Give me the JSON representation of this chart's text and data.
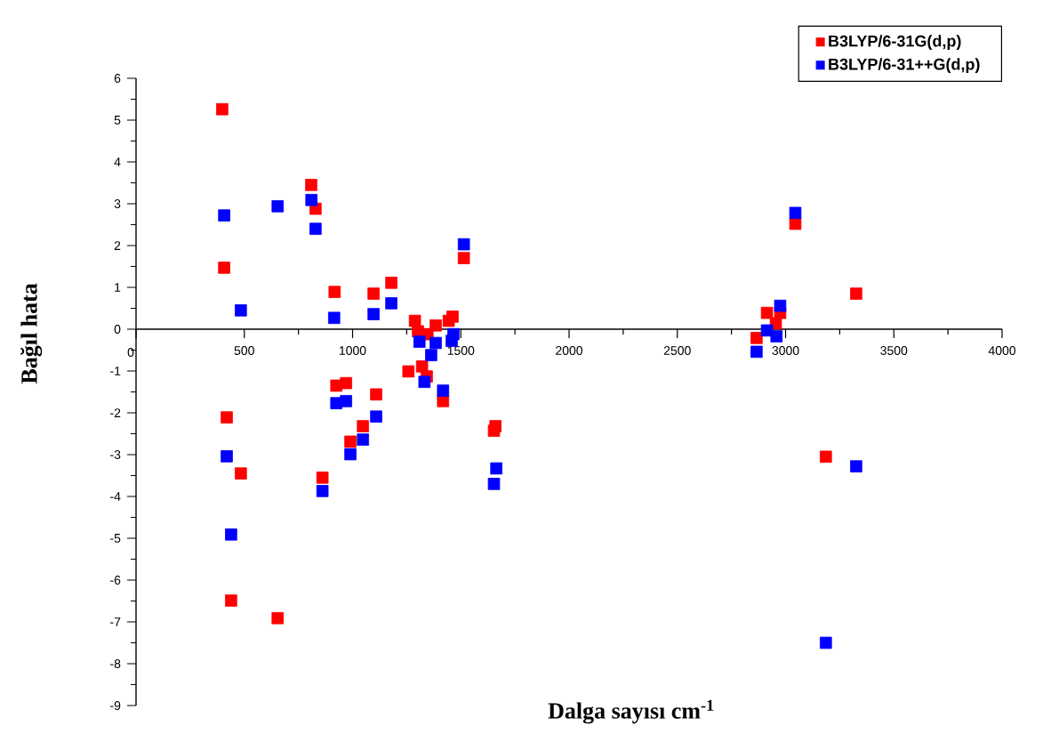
{
  "chart_data": {
    "type": "scatter",
    "xlabel": "Dalga sayısı cm$^{-1}$",
    "ylabel": "Bağıl hata",
    "xlim": [
      0,
      4000
    ],
    "ylim": [
      -9,
      6
    ],
    "xticks": [
      0,
      500,
      1000,
      1500,
      2000,
      2500,
      3000,
      3500,
      4000
    ],
    "yticks": [
      -9,
      -8,
      -7,
      -6,
      -5,
      -4,
      -3,
      -2,
      -1,
      0,
      1,
      2,
      3,
      4,
      5,
      6
    ],
    "marker": "square",
    "legend": "top right",
    "series": [
      {
        "name": "B3LYP/6-31G(d,p)",
        "color": "#ff0000",
        "x": [
          398,
          407,
          419,
          439,
          484,
          654,
          809,
          829,
          861,
          917,
          925,
          970,
          990,
          1048,
          1097,
          1109,
          1179,
          1258,
          1288,
          1302,
          1321,
          1343,
          1346,
          1384,
          1418,
          1444,
          1462,
          1514,
          1653,
          1660,
          2866,
          2914,
          2955,
          2975,
          3045,
          3186,
          3326
        ],
        "values": [
          5.26,
          1.47,
          -2.11,
          -6.49,
          -3.45,
          -6.91,
          3.45,
          2.88,
          -3.55,
          0.89,
          -1.35,
          -1.29,
          -2.69,
          -2.32,
          0.85,
          -1.56,
          1.11,
          -1.01,
          0.2,
          -0.05,
          -0.89,
          -1.13,
          -0.12,
          0.09,
          -1.72,
          0.2,
          0.3,
          1.7,
          -2.43,
          -2.32,
          -0.21,
          0.39,
          0.14,
          0.39,
          2.52,
          -3.05,
          0.85
        ]
      },
      {
        "name": "B3LYP/6-31++G(d,p)",
        "color": "#0000ff",
        "x": [
          407,
          419,
          439,
          484,
          654,
          810,
          829,
          861,
          915,
          925,
          970,
          990,
          1048,
          1097,
          1109,
          1179,
          1309,
          1332,
          1363,
          1384,
          1418,
          1458,
          1466,
          1514,
          1653,
          1664,
          2866,
          2914,
          2958,
          2975,
          3045,
          3186,
          3326
        ],
        "values": [
          2.72,
          -3.04,
          -4.91,
          0.45,
          2.94,
          3.09,
          2.4,
          -3.87,
          0.27,
          -1.77,
          -1.72,
          -2.99,
          -2.64,
          0.36,
          -2.09,
          0.62,
          -0.3,
          -1.26,
          -0.62,
          -0.33,
          -1.47,
          -0.28,
          -0.12,
          2.03,
          -3.7,
          -3.33,
          -0.54,
          -0.03,
          -0.17,
          0.56,
          2.78,
          -7.5,
          -3.28
        ]
      }
    ]
  }
}
